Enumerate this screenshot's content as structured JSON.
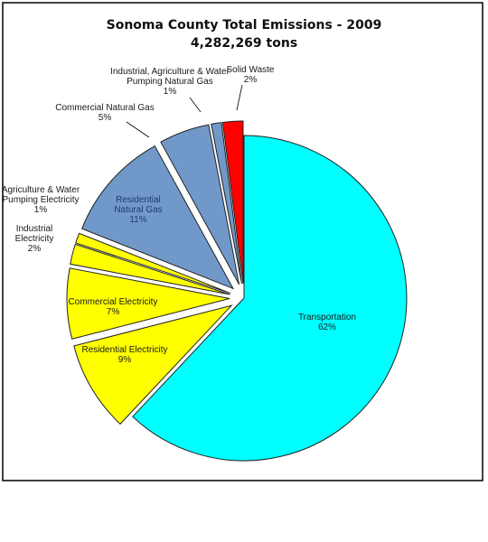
{
  "chart_data": {
    "type": "pie",
    "title": "Sonoma County Total Emissions - 2009",
    "subtitle": "4,282,269 tons",
    "categories": [
      "Transportation",
      "Residential Electricity",
      "Commercial Electricity",
      "Industrial Electricity",
      "Agriculture & Water Pumping Electricity",
      "Residential Natural Gas",
      "Commercial Natural Gas",
      "Industrial, Agriculture & Water Pumping Natural Gas",
      "Solid Waste"
    ],
    "values": [
      62,
      9,
      7,
      2,
      1,
      11,
      5,
      1,
      2
    ],
    "value_labels": [
      "62%",
      "9%",
      "7%",
      "2%",
      "1%",
      "11%",
      "5%",
      "1%",
      "2%"
    ],
    "colors": [
      "#00ffff",
      "#ffff00",
      "#ffff00",
      "#ffff00",
      "#ffff00",
      "#7099c9",
      "#7099c9",
      "#7099c9",
      "#ff0000"
    ]
  }
}
